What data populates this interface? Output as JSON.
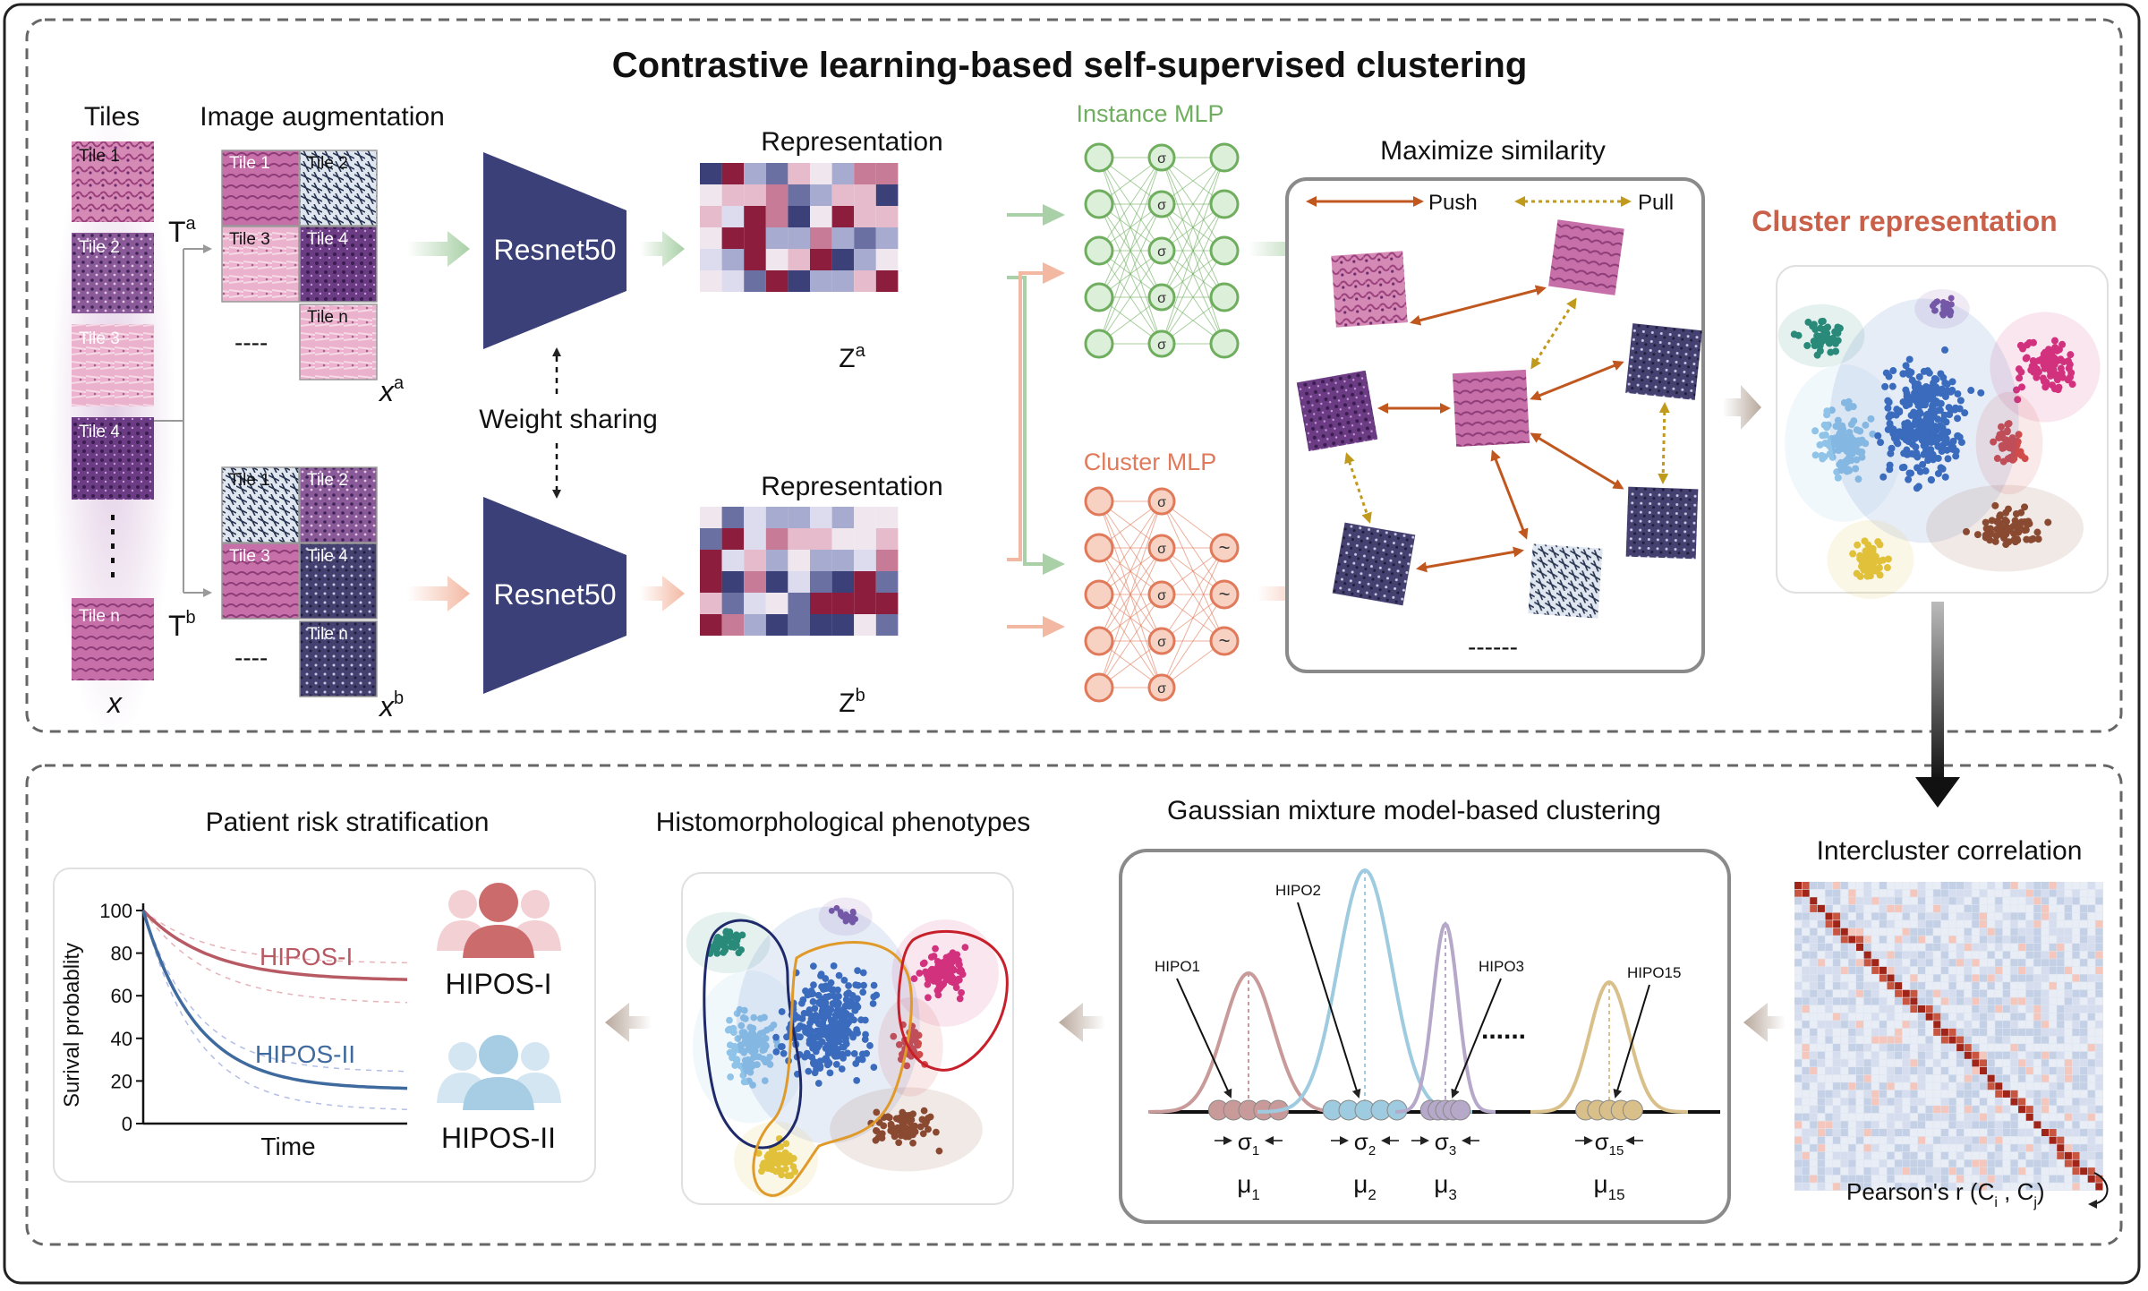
{
  "title": "Contrastive learning-based self-supervised clustering",
  "tiles": {
    "header": "Tiles",
    "labels": [
      "Tile 1",
      "Tile 2",
      "Tile 3",
      "Tile 4",
      "Tile n"
    ],
    "x_label": "x"
  },
  "augmentation": {
    "header": "Image augmentation",
    "ta": "T",
    "ta_sup": "a",
    "tb": "T",
    "tb_sup": "b",
    "labels_a": [
      "Tile 1",
      "Tile 2",
      "Tile 3",
      "Tile 4",
      "Tile n"
    ],
    "labels_b": [
      "Tile 1",
      "Tile 2",
      "Tile 3",
      "Tile 4",
      "Tile n"
    ],
    "ellipsis": "----",
    "xa": "x",
    "xa_sup": "a",
    "xb": "x",
    "xb_sup": "b"
  },
  "encoder": {
    "label_top": "Resnet50",
    "label_bottom": "Resnet50",
    "weight_sharing": "Weight sharing"
  },
  "representation": {
    "title_top": "Representation",
    "title_bottom": "Representation",
    "za": "Z",
    "za_sup": "a",
    "zb": "Z",
    "zb_sup": "b"
  },
  "mlp": {
    "instance_label": "Instance MLP",
    "cluster_label": "Cluster MLP",
    "sigma": "σ",
    "tilde": "~"
  },
  "similarity": {
    "title": "Maximize similarity",
    "push": "Push",
    "pull": "Pull",
    "ellipsis": "------"
  },
  "cluster_representation": {
    "title": "Cluster representation"
  },
  "intercluster": {
    "title": "Intercluster correlation",
    "caption": "Pearson's r (C",
    "ci_sub": "i",
    "mid": " , C",
    "cj_sub": "j",
    "end": ")"
  },
  "gmm": {
    "title": "Gaussian mixture model-based clustering",
    "labels": [
      "HIPO1",
      "HIPO2",
      "HIPO3",
      "HIPO15"
    ],
    "dots": "......",
    "sigma_labels": [
      "σ",
      "σ",
      "σ",
      "σ"
    ],
    "sigma_subs": [
      "1",
      "2",
      "3",
      "15"
    ],
    "mu_labels": [
      "μ",
      "μ",
      "μ",
      "μ"
    ],
    "mu_subs": [
      "1",
      "2",
      "3",
      "15"
    ]
  },
  "phenotypes": {
    "title": "Histomorphological phenotypes"
  },
  "risk": {
    "title": "Patient risk stratification",
    "y_label": "Surival probablity",
    "x_label": "Time",
    "y_ticks": [
      "100",
      "80",
      "60",
      "40",
      "20",
      "0"
    ],
    "curve_labels": [
      "HIPOS-I",
      "HIPOS-II"
    ],
    "group_labels": [
      "HIPOS-I",
      "HIPOS-II"
    ]
  },
  "colors": {
    "encoder": "#3b4178",
    "instance": "#6fae5f",
    "cluster": "#e07a5a",
    "cluster_title": "#c9604a",
    "push": "#c0571f",
    "pull": "#c09a1c",
    "hipos1": "#b85a63",
    "hipos2": "#3e6a9e"
  }
}
